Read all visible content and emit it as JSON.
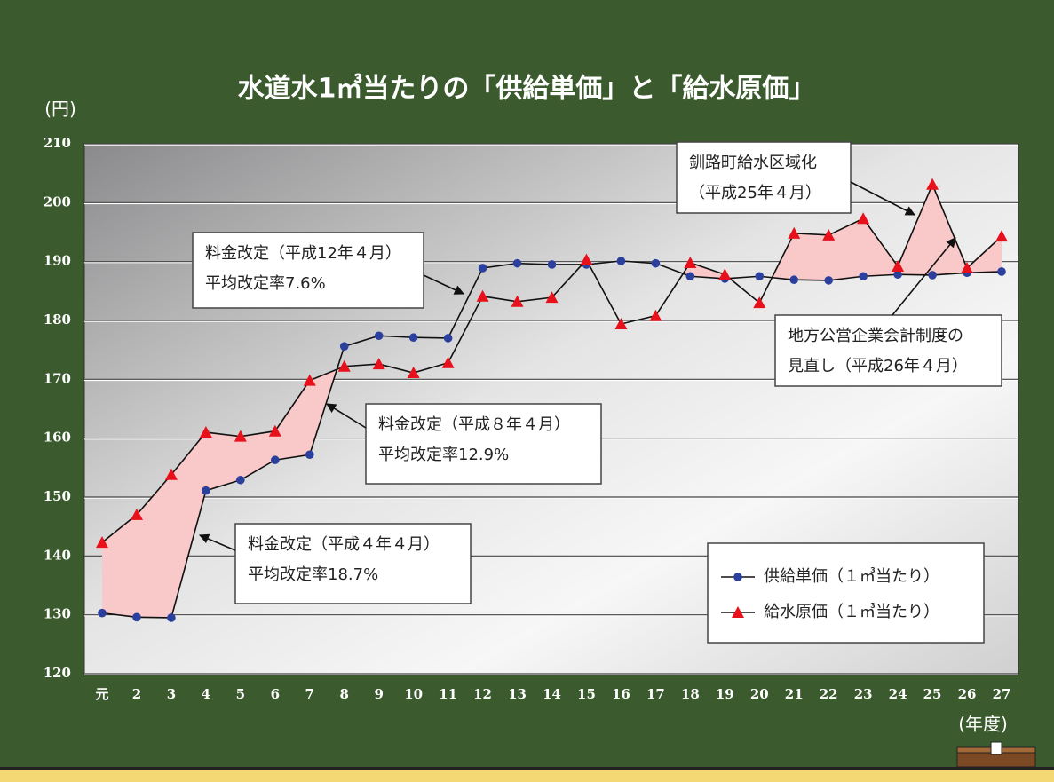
{
  "chart_data": {
    "type": "line",
    "title": "水道水1㎥当たりの「供給単価」と「給水原価」",
    "y_label": "(円)",
    "x_label": "(年度)",
    "categories": [
      "元",
      "2",
      "3",
      "4",
      "5",
      "6",
      "7",
      "8",
      "9",
      "10",
      "11",
      "12",
      "13",
      "14",
      "15",
      "16",
      "17",
      "18",
      "19",
      "20",
      "21",
      "22",
      "23",
      "24",
      "25",
      "26",
      "27"
    ],
    "series": [
      {
        "name": "供給単価（１㎥当たり）",
        "color": "#2b3f9c",
        "marker": "circle",
        "values": [
          130.3,
          129.6,
          129.5,
          151.1,
          152.9,
          156.3,
          157.2,
          175.6,
          177.4,
          177.1,
          177.0,
          188.9,
          189.7,
          189.5,
          189.5,
          190.1,
          189.7,
          187.5,
          187.1,
          187.5,
          186.9,
          186.8,
          187.5,
          187.8,
          187.7,
          188.1,
          188.3
        ]
      },
      {
        "name": "給水原価（１㎥当たり）",
        "color": "#e8101a",
        "marker": "triangle",
        "values": [
          142.3,
          147.0,
          153.8,
          161.0,
          160.3,
          161.2,
          169.8,
          172.2,
          172.6,
          171.1,
          172.8,
          184.1,
          183.2,
          183.9,
          190.3,
          179.4,
          180.8,
          189.8,
          187.8,
          183.0,
          194.8,
          194.5,
          197.3,
          189.2,
          203.1,
          188.9,
          194.3
        ]
      }
    ],
    "ylim": [
      120,
      210
    ],
    "yticks": [
      120,
      130,
      140,
      150,
      160,
      170,
      180,
      190,
      200,
      210
    ],
    "grid": true,
    "fill_between_color": "#f9c8c8",
    "annotations": [
      {
        "lines": [
          "料金改定（平成４年４月）",
          "平均改定率18.7%"
        ]
      },
      {
        "lines": [
          "料金改定（平成８年４月）",
          "平均改定率12.9%"
        ]
      },
      {
        "lines": [
          "料金改定（平成12年４月）",
          "平均改定率7.6%"
        ]
      },
      {
        "lines": [
          "釧路町給水区域化",
          "（平成25年４月）"
        ]
      },
      {
        "lines": [
          "地方公営企業会計制度の",
          "見直し（平成26年４月）"
        ]
      }
    ]
  }
}
